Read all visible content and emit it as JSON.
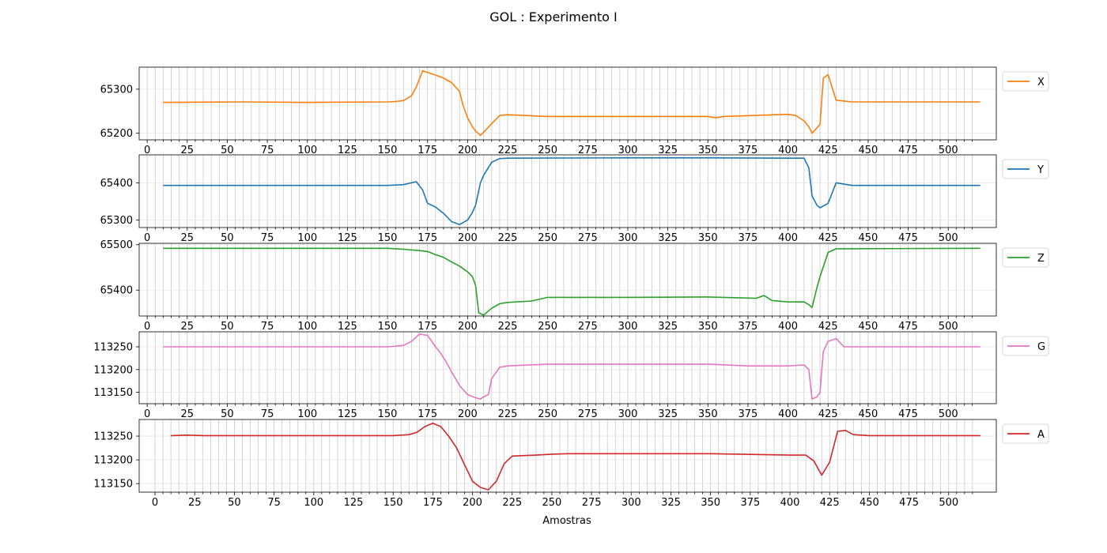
{
  "title": "GOL : Experimento I",
  "xlabel": "Amostras",
  "chart_data": [
    {
      "type": "line",
      "series": [
        {
          "name": "X",
          "color": "#ff7f0e",
          "x": [
            10,
            60,
            100,
            150,
            155,
            160,
            165,
            168,
            172,
            175,
            180,
            185,
            190,
            195,
            197,
            200,
            203,
            205,
            208,
            212,
            215,
            220,
            225,
            250,
            300,
            350,
            355,
            360,
            400,
            405,
            410,
            413,
            415,
            418,
            420,
            422,
            425,
            430,
            440,
            520
          ],
          "values": [
            65270,
            65271,
            65270,
            65271,
            65272,
            65274,
            65285,
            65305,
            65342,
            65338,
            65332,
            65325,
            65315,
            65295,
            65265,
            65235,
            65215,
            65205,
            65195,
            65210,
            65222,
            65240,
            65242,
            65238,
            65238,
            65238,
            65235,
            65238,
            65243,
            65240,
            65228,
            65215,
            65200,
            65212,
            65220,
            65325,
            65333,
            65275,
            65271,
            65271
          ]
        }
      ],
      "ylim": [
        65185,
        65350
      ],
      "yticks": [
        65200,
        65300
      ],
      "xlim": [
        -5,
        530
      ],
      "xticks": [
        0,
        25,
        50,
        75,
        100,
        125,
        150,
        175,
        200,
        225,
        250,
        275,
        300,
        325,
        350,
        375,
        400,
        425,
        450,
        475,
        500
      ],
      "legend": "right"
    },
    {
      "type": "line",
      "series": [
        {
          "name": "Y",
          "color": "#1f77b4",
          "x": [
            10,
            60,
            100,
            150,
            160,
            168,
            172,
            175,
            180,
            185,
            190,
            195,
            200,
            203,
            205,
            208,
            210,
            215,
            220,
            225,
            300,
            350,
            400,
            410,
            413,
            415,
            418,
            420,
            425,
            430,
            440,
            520
          ],
          "values": [
            65393,
            65393,
            65393,
            65393,
            65395,
            65403,
            65380,
            65345,
            65335,
            65318,
            65296,
            65288,
            65300,
            65320,
            65340,
            65400,
            65420,
            65455,
            65465,
            65466,
            65467,
            65467,
            65466,
            65466,
            65440,
            65365,
            65340,
            65333,
            65345,
            65400,
            65393,
            65393
          ]
        }
      ],
      "ylim": [
        65280,
        65475
      ],
      "yticks": [
        65300,
        65400
      ],
      "xlim": [
        -5,
        530
      ],
      "xticks": [
        0,
        25,
        50,
        75,
        100,
        125,
        150,
        175,
        200,
        225,
        250,
        275,
        300,
        325,
        350,
        375,
        400,
        425,
        450,
        475,
        500
      ],
      "legend": "right"
    },
    {
      "type": "line",
      "series": [
        {
          "name": "Z",
          "color": "#2ca02c",
          "x": [
            10,
            100,
            150,
            160,
            170,
            175,
            180,
            185,
            190,
            195,
            200,
            203,
            205,
            207,
            210,
            215,
            220,
            225,
            240,
            250,
            300,
            350,
            380,
            385,
            390,
            400,
            410,
            413,
            415,
            418,
            420,
            425,
            430,
            520
          ],
          "values": [
            65492,
            65492,
            65492,
            65490,
            65487,
            65485,
            65478,
            65472,
            65462,
            65453,
            65440,
            65430,
            65410,
            65350,
            65345,
            65360,
            65370,
            65373,
            65376,
            65384,
            65384,
            65385,
            65382,
            65388,
            65377,
            65374,
            65374,
            65368,
            65362,
            65405,
            65430,
            65483,
            65491,
            65492
          ]
        }
      ],
      "ylim": [
        65343,
        65503
      ],
      "yticks": [
        65400,
        65500
      ],
      "xlim": [
        -5,
        530
      ],
      "xticks": [
        0,
        25,
        50,
        75,
        100,
        125,
        150,
        175,
        200,
        225,
        250,
        275,
        300,
        325,
        350,
        375,
        400,
        425,
        450,
        475,
        500
      ],
      "legend": "right"
    },
    {
      "type": "line",
      "series": [
        {
          "name": "G",
          "color": "#e377c2",
          "x": [
            10,
            100,
            150,
            160,
            165,
            170,
            175,
            180,
            183,
            187,
            190,
            195,
            200,
            205,
            208,
            210,
            213,
            215,
            220,
            225,
            250,
            300,
            350,
            375,
            400,
            410,
            413,
            415,
            418,
            420,
            422,
            425,
            430,
            435,
            440,
            520
          ],
          "values": [
            113250,
            113250,
            113250,
            113253,
            113262,
            113278,
            113275,
            113250,
            113237,
            113215,
            113195,
            113165,
            113145,
            113138,
            113135,
            113140,
            113145,
            113180,
            113205,
            113208,
            113212,
            113212,
            113212,
            113208,
            113208,
            113210,
            113200,
            113135,
            113140,
            113150,
            113240,
            113262,
            113268,
            113250,
            113250,
            113250
          ]
        }
      ],
      "ylim": [
        113125,
        113283
      ],
      "yticks": [
        113150,
        113200,
        113250
      ],
      "xlim": [
        -5,
        530
      ],
      "xticks": [
        0,
        25,
        50,
        75,
        100,
        125,
        150,
        175,
        200,
        225,
        250,
        275,
        300,
        325,
        350,
        375,
        400,
        425,
        450,
        475,
        500
      ],
      "legend": "right"
    },
    {
      "type": "line",
      "series": [
        {
          "name": "A",
          "color": "#d62728",
          "x": [
            10,
            20,
            30,
            50,
            100,
            150,
            160,
            165,
            170,
            175,
            180,
            185,
            190,
            195,
            200,
            205,
            210,
            215,
            220,
            225,
            240,
            250,
            260,
            300,
            350,
            400,
            410,
            415,
            420,
            425,
            430,
            435,
            440,
            450,
            520
          ],
          "values": [
            113251,
            113252,
            113251,
            113251,
            113251,
            113251,
            113253,
            113258,
            113270,
            113277,
            113270,
            113250,
            113225,
            113190,
            113155,
            113142,
            113137,
            113155,
            113192,
            113208,
            113210,
            113212,
            113213,
            113213,
            113213,
            113210,
            113210,
            113198,
            113168,
            113195,
            113260,
            113262,
            113253,
            113251,
            113251
          ]
        }
      ],
      "ylim": [
        113132,
        113285
      ],
      "yticks": [
        113150,
        113200,
        113250
      ],
      "xlim": [
        -10,
        530
      ],
      "xticks": [
        0,
        25,
        50,
        75,
        100,
        125,
        150,
        175,
        200,
        225,
        250,
        275,
        300,
        325,
        350,
        375,
        400,
        425,
        450,
        475,
        500
      ],
      "legend": "right"
    }
  ]
}
